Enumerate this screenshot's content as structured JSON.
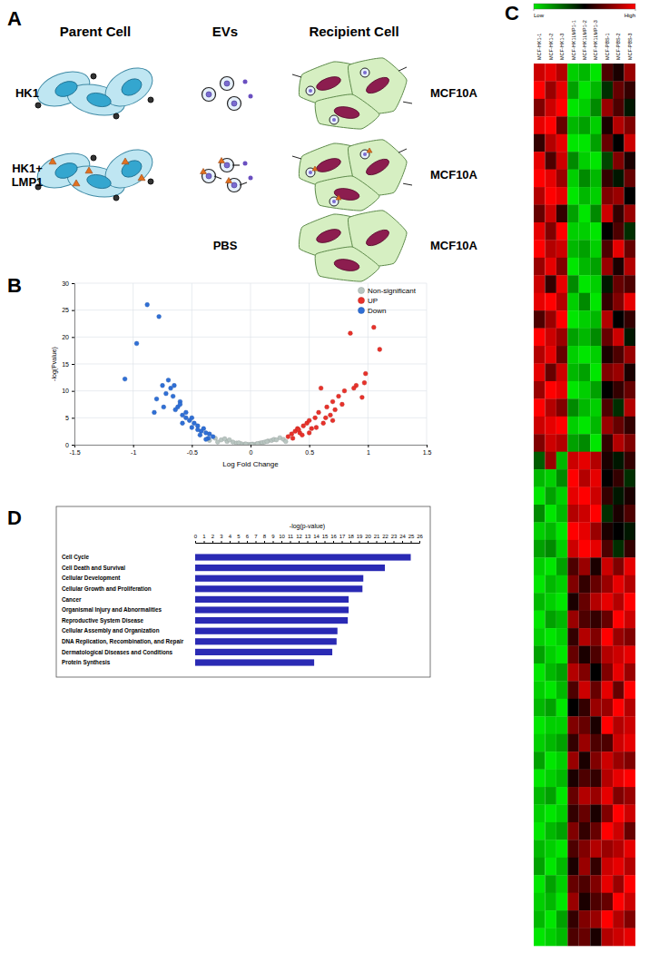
{
  "panel_labels": [
    "A",
    "B",
    "C",
    "D"
  ],
  "diagram": {
    "headers": [
      "Parent Cell",
      "EVs",
      "Recipient Cell"
    ],
    "parent_labels": [
      [
        "HK1"
      ],
      [
        "HK1+",
        "LMP1"
      ]
    ],
    "ev_labels": [
      "PBS"
    ],
    "recipient_labels": [
      "MCF10A",
      "MCF10A",
      "MCF10A"
    ]
  },
  "chart_data": [
    {
      "type": "scatter",
      "xlabel": "Log Fold Change",
      "ylabel": "-log(Pvalue)",
      "xlim": [
        -1.5,
        1.5
      ],
      "xticks": [
        -1.5,
        -1,
        -0.5,
        0,
        0.5,
        1,
        1.5
      ],
      "ylim": [
        0,
        30
      ],
      "yticks": [
        0,
        5,
        10,
        15,
        20,
        25,
        30
      ],
      "grid": true,
      "legend": "top-right",
      "series": [
        {
          "name": "Non-significant",
          "color": "#b9c6c1",
          "x": [
            -0.35,
            -0.3,
            -0.25,
            -0.2,
            -0.15,
            -0.12,
            -0.08,
            -0.05,
            -0.02,
            0,
            0.02,
            0.05,
            0.08,
            0.1,
            0.12,
            0.15,
            0.18,
            0.2,
            0.22,
            0.25,
            -0.18,
            -0.22,
            0.28,
            -0.1,
            0.06,
            -0.04,
            0.14,
            -0.28,
            0.3,
            0.01
          ],
          "values": [
            0.8,
            1.2,
            0.9,
            0.6,
            0.5,
            0.3,
            0.2,
            0.1,
            0.05,
            0.02,
            0.1,
            0.15,
            0.3,
            0.4,
            0.5,
            0.7,
            0.8,
            1,
            0.9,
            1.3,
            0.9,
            1.1,
            1,
            0.35,
            0.2,
            0.15,
            0.6,
            0.5,
            0.6,
            0.08
          ]
        },
        {
          "name": "UP",
          "color": "#e8312a",
          "x": [
            0.32,
            0.35,
            0.38,
            0.4,
            0.42,
            0.45,
            0.48,
            0.5,
            0.52,
            0.55,
            0.58,
            0.6,
            0.62,
            0.65,
            0.68,
            0.7,
            0.72,
            0.75,
            0.78,
            0.8,
            0.85,
            0.9,
            0.95,
            0.97,
            0.98,
            1.05,
            1.1,
            0.88,
            0.36,
            0.44,
            0.5,
            0.56,
            0.64,
            0.7,
            0.41
          ],
          "values": [
            1.5,
            2,
            2.5,
            3,
            2.2,
            3.5,
            4,
            4.5,
            3,
            5,
            6,
            10.5,
            4,
            7,
            5.5,
            8,
            6.5,
            9,
            7.5,
            10,
            20.7,
            11,
            8.8,
            11.5,
            13.2,
            21.8,
            17.7,
            10.5,
            1.2,
            1.8,
            2.2,
            3.2,
            5,
            4.5,
            2.8
          ]
        },
        {
          "name": "Down",
          "color": "#2f6fd6",
          "x": [
            -0.32,
            -0.35,
            -0.38,
            -0.4,
            -0.42,
            -0.45,
            -0.48,
            -0.5,
            -0.52,
            -0.55,
            -0.58,
            -0.6,
            -0.62,
            -0.65,
            -0.68,
            -0.7,
            -0.72,
            -0.75,
            -0.78,
            -0.8,
            -0.82,
            -0.88,
            -0.97,
            -1.07,
            -0.66,
            -0.6,
            -0.55,
            -0.45,
            -0.36,
            -0.5,
            -0.74,
            -0.43,
            -0.58,
            -0.64,
            -0.38
          ],
          "values": [
            1.5,
            2,
            2.2,
            3,
            2.5,
            3.5,
            4,
            5,
            4.5,
            6,
            5.5,
            8,
            7,
            11,
            10.5,
            12,
            9.5,
            11,
            23.8,
            8.5,
            6,
            26,
            18.8,
            12.2,
            9,
            7.5,
            5,
            2.8,
            1.2,
            3.2,
            7,
            1.8,
            4,
            6.5,
            1
          ]
        }
      ]
    },
    {
      "type": "heatmap",
      "tick_labels": "x",
      "categories": [
        "MCF-HK1-1",
        "MCF-HK1-2",
        "MCF-HK1-3",
        "MCF-HK1LMP1-1",
        "MCF-HK1LMP1-2",
        "MCF-HK1LMP1-3",
        "MCF-PBS-1",
        "MCF-PBS-2",
        "MCF-PBS-3"
      ],
      "color_range": [
        -1,
        1
      ],
      "color_ticks": [
        {
          "value": -1,
          "label": "Low"
        },
        {
          "value": 1,
          "label": "High"
        }
      ],
      "cells": [
        [
          0.8,
          0.9,
          0.7,
          -0.9,
          -0.8,
          -1,
          0.3,
          0.1,
          0.6
        ],
        [
          1,
          0.6,
          0.9,
          -0.7,
          -1,
          -0.8,
          -0.2,
          0.4,
          0.2
        ],
        [
          0.5,
          0.8,
          1,
          -1,
          -0.9,
          -0.6,
          0.6,
          0.3,
          -0.1
        ],
        [
          0.9,
          1,
          0.4,
          -0.8,
          -0.7,
          -0.9,
          0.1,
          0.7,
          0.5
        ],
        [
          0.2,
          0.7,
          0.9,
          -1,
          -1,
          -0.7,
          0.4,
          0,
          0.8
        ],
        [
          0.9,
          0.3,
          0.8,
          -0.6,
          -0.9,
          -1,
          -0.3,
          0.5,
          0.1
        ],
        [
          1,
          0.9,
          0.6,
          -0.9,
          -0.6,
          -0.8,
          0.2,
          -0.1,
          0.4
        ],
        [
          0.7,
          1,
          0.9,
          -1,
          -0.8,
          -0.9,
          0.5,
          0.6,
          0
        ],
        [
          0.4,
          0.8,
          0.2,
          -0.7,
          -1,
          -0.6,
          0.8,
          0.2,
          0.6
        ],
        [
          0.9,
          0.5,
          1,
          -0.9,
          -0.9,
          -1,
          0,
          0.3,
          -0.2
        ],
        [
          1,
          0.7,
          0.8,
          -0.8,
          -0.7,
          -0.9,
          0.3,
          0.9,
          0.4
        ],
        [
          0.6,
          0.9,
          0.5,
          -1,
          -0.8,
          -0.7,
          0.6,
          0.1,
          0.7
        ],
        [
          0.8,
          0.2,
          0.9,
          -0.6,
          -1,
          -0.9,
          -0.1,
          0.4,
          0.3
        ],
        [
          0.9,
          1,
          0.7,
          -0.9,
          -0.6,
          -1,
          0.2,
          0.5,
          0.9
        ],
        [
          0.3,
          0.6,
          1,
          -1,
          -0.9,
          -0.8,
          0.7,
          0,
          0.2
        ],
        [
          1,
          0.8,
          0.6,
          -0.7,
          -0.8,
          -0.6,
          0.4,
          0.8,
          -0.1
        ],
        [
          0.7,
          0.9,
          0.4,
          -0.9,
          -1,
          -0.9,
          0.1,
          0.3,
          0.6
        ],
        [
          0.9,
          0.4,
          0.8,
          -0.8,
          -0.7,
          -1,
          0.5,
          0.6,
          0.1
        ],
        [
          0.6,
          1,
          0.9,
          -1,
          -0.9,
          -0.7,
          0,
          0.2,
          0.4
        ],
        [
          1,
          0.7,
          0.5,
          -0.6,
          -0.8,
          -0.9,
          0.3,
          -0.2,
          0.7
        ],
        [
          0.8,
          0.9,
          1,
          -0.9,
          -1,
          -0.8,
          0.6,
          0.4,
          0.2
        ],
        [
          0.5,
          0.8,
          0.7,
          -0.7,
          -0.6,
          -1,
          0.2,
          0.7,
          0.5
        ],
        [
          -0.4,
          0.6,
          -0.8,
          0.8,
          0.9,
          0.7,
          0.1,
          -0.1,
          0.2
        ],
        [
          -0.8,
          -0.9,
          -0.6,
          1,
          0.7,
          0.9,
          0,
          0.2,
          -0.2
        ],
        [
          -1,
          -0.7,
          -0.9,
          0.9,
          1,
          0.8,
          0.2,
          -0.1,
          0.1
        ],
        [
          -0.6,
          -1,
          -0.8,
          0.7,
          0.8,
          1,
          -0.2,
          0.1,
          0.3
        ],
        [
          -0.9,
          -0.8,
          -1,
          1,
          0.9,
          0.6,
          0.1,
          0,
          -0.1
        ],
        [
          -0.7,
          -0.6,
          -0.9,
          0.8,
          1,
          0.9,
          0.3,
          -0.2,
          0.2
        ],
        [
          -0.9,
          -1,
          -0.7,
          0.3,
          0.6,
          0.1,
          0.8,
          0.5,
          0.9
        ],
        [
          -1,
          -0.8,
          -0.9,
          0.5,
          0.2,
          0.4,
          0.6,
          0.9,
          0.7
        ],
        [
          -0.8,
          -0.9,
          -1,
          0.1,
          0.4,
          0.7,
          0.9,
          0.7,
          1
        ],
        [
          -1,
          -0.7,
          -0.8,
          0.6,
          0.3,
          0.2,
          0.4,
          1,
          0.8
        ],
        [
          -0.9,
          -1,
          -0.9,
          0.2,
          0.7,
          0.5,
          1,
          0.6,
          0.5
        ],
        [
          -0.7,
          -0.9,
          -1,
          0.4,
          0.1,
          0.3,
          0.7,
          0.8,
          0.9
        ],
        [
          -1,
          -0.8,
          -0.7,
          0.7,
          0.5,
          0,
          0.5,
          0.9,
          0.6
        ],
        [
          -0.9,
          -1,
          -0.8,
          0.3,
          0.8,
          0.4,
          0.9,
          0.4,
          1
        ],
        [
          -0.8,
          -0.7,
          -1,
          0,
          0.2,
          0.6,
          0.6,
          1,
          0.7
        ],
        [
          -1,
          -0.9,
          -0.9,
          0.5,
          0.4,
          0.1,
          1,
          0.7,
          0.8
        ],
        [
          -0.9,
          -0.8,
          -0.7,
          0.2,
          0.6,
          0.3,
          0.3,
          0.8,
          0.9
        ],
        [
          -0.7,
          -1,
          -0.9,
          0.6,
          0.1,
          0.5,
          0.8,
          0.6,
          0.5
        ],
        [
          -1,
          -0.9,
          -0.8,
          0.1,
          0.3,
          0.2,
          0.7,
          0.9,
          1
        ],
        [
          -0.8,
          -0.7,
          -1,
          0.4,
          0.7,
          0.6,
          0.9,
          0.5,
          0.6
        ],
        [
          -0.9,
          -1,
          -0.9,
          0.2,
          0.4,
          0.1,
          0.5,
          1,
          0.8
        ],
        [
          -1,
          -0.8,
          -0.7,
          0.5,
          0.2,
          0.4,
          1,
          0.8,
          0.4
        ],
        [
          -0.8,
          -0.9,
          -1,
          0.3,
          0.5,
          0.7,
          0.6,
          0.7,
          0.9
        ],
        [
          -0.7,
          -1,
          -0.8,
          0.1,
          0.6,
          0.2,
          0.8,
          0.9,
          0.7
        ],
        [
          -1,
          -0.7,
          -0.9,
          0.4,
          0.3,
          0.5,
          0.9,
          0.6,
          1
        ],
        [
          -0.9,
          -0.8,
          -1,
          0.6,
          0.1,
          0.3,
          0.4,
          1,
          0.8
        ],
        [
          -0.8,
          -1,
          -0.7,
          0.2,
          0.5,
          0.6,
          1,
          0.7,
          0.5
        ],
        [
          -1,
          -0.9,
          -0.8,
          0.3,
          0.4,
          0.1,
          0.7,
          0.8,
          0.9
        ]
      ]
    },
    {
      "type": "bar",
      "orientation": "horizontal",
      "title": "-log(p-value)",
      "categories": [
        "Cell Cycle",
        "Cell Death and Survival",
        "Cellular Development",
        "Cellular Growth and Proliferation",
        "Cancer",
        "Organismal Injury and Abnormalities",
        "Reproductive System Disease",
        "Cellular Assembly and Organization",
        "DNA Replication, Recombination, and Repair",
        "Dermatological Diseases and Conditions",
        "Protein Synthesis"
      ],
      "values": [
        25.0,
        22.0,
        19.5,
        19.4,
        17.8,
        17.8,
        17.7,
        16.5,
        16.4,
        15.9,
        13.8
      ],
      "color": "#2a2ab4",
      "xlim": [
        0,
        26
      ],
      "xticks": [
        0,
        1,
        2,
        3,
        4,
        5,
        6,
        7,
        8,
        9,
        10,
        11,
        12,
        13,
        14,
        15,
        16,
        17,
        18,
        19,
        20,
        21,
        22,
        23,
        24,
        25,
        26
      ]
    }
  ]
}
